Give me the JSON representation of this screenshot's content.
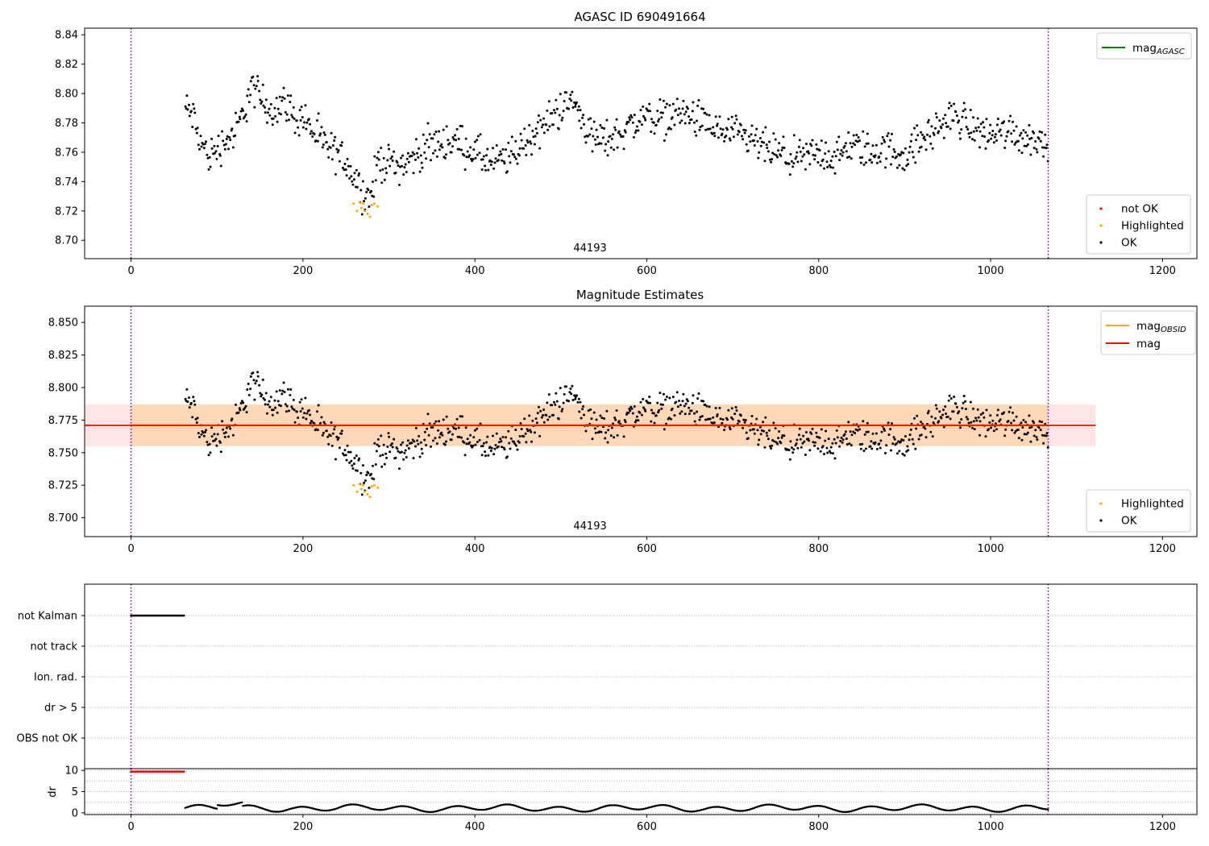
{
  "chart_data": [
    {
      "type": "scatter",
      "title": "AGASC ID 690491664",
      "xlim": [
        -54,
        1240
      ],
      "ylim": [
        8.6875,
        8.8445
      ],
      "xticks": [
        0,
        200,
        400,
        600,
        800,
        1000,
        1200
      ],
      "yticks": [
        8.7,
        8.72,
        8.74,
        8.76,
        8.78,
        8.8,
        8.82,
        8.84
      ],
      "ytick_labels": [
        "8.70",
        "8.72",
        "8.74",
        "8.76",
        "8.78",
        "8.80",
        "8.82",
        "8.84"
      ],
      "vlines": [
        0,
        1067
      ],
      "vline_color": "#800080",
      "annotation": "44193",
      "annotation_x": 534,
      "legend_lines": [
        {
          "label": "mag",
          "sub": "AGASC",
          "color": "#008000"
        }
      ],
      "legend_points": [
        {
          "label": "not OK",
          "color": "#ff0000"
        },
        {
          "label": "Highlighted",
          "color": "#ffa500"
        },
        {
          "label": "OK",
          "color": "#000000"
        }
      ],
      "series_note": "OK: anchors of the light curve (x, mag), dense points generated between them; Highlighted: orange points",
      "ok_anchors": [
        [
          63,
          8.79
        ],
        [
          72,
          8.785
        ],
        [
          80,
          8.768
        ],
        [
          90,
          8.757
        ],
        [
          100,
          8.762
        ],
        [
          110,
          8.768
        ],
        [
          120,
          8.772
        ],
        [
          130,
          8.785
        ],
        [
          140,
          8.805
        ],
        [
          150,
          8.797
        ],
        [
          160,
          8.79
        ],
        [
          170,
          8.79
        ],
        [
          180,
          8.795
        ],
        [
          190,
          8.782
        ],
        [
          200,
          8.785
        ],
        [
          210,
          8.775
        ],
        [
          220,
          8.768
        ],
        [
          230,
          8.762
        ],
        [
          240,
          8.758
        ],
        [
          250,
          8.755
        ],
        [
          258,
          8.745
        ],
        [
          268,
          8.735
        ],
        [
          278,
          8.728
        ],
        [
          288,
          8.755
        ],
        [
          300,
          8.752
        ],
        [
          320,
          8.752
        ],
        [
          340,
          8.762
        ],
        [
          360,
          8.767
        ],
        [
          380,
          8.767
        ],
        [
          400,
          8.76
        ],
        [
          420,
          8.752
        ],
        [
          440,
          8.756
        ],
        [
          460,
          8.768
        ],
        [
          480,
          8.778
        ],
        [
          500,
          8.79
        ],
        [
          515,
          8.795
        ],
        [
          525,
          8.782
        ],
        [
          540,
          8.768
        ],
        [
          560,
          8.77
        ],
        [
          580,
          8.778
        ],
        [
          600,
          8.785
        ],
        [
          620,
          8.783
        ],
        [
          640,
          8.787
        ],
        [
          660,
          8.782
        ],
        [
          680,
          8.775
        ],
        [
          700,
          8.772
        ],
        [
          720,
          8.768
        ],
        [
          740,
          8.762
        ],
        [
          760,
          8.757
        ],
        [
          780,
          8.755
        ],
        [
          800,
          8.76
        ],
        [
          820,
          8.756
        ],
        [
          840,
          8.765
        ],
        [
          860,
          8.76
        ],
        [
          880,
          8.762
        ],
        [
          900,
          8.758
        ],
        [
          920,
          8.768
        ],
        [
          940,
          8.778
        ],
        [
          960,
          8.785
        ],
        [
          980,
          8.776
        ],
        [
          1000,
          8.772
        ],
        [
          1020,
          8.775
        ],
        [
          1040,
          8.77
        ],
        [
          1067,
          8.767
        ]
      ],
      "highlighted": [
        [
          259,
          8.725
        ],
        [
          263,
          8.72
        ],
        [
          266,
          8.726
        ],
        [
          268,
          8.722
        ],
        [
          270,
          8.725
        ],
        [
          272,
          8.72
        ],
        [
          275,
          8.718
        ],
        [
          278,
          8.716
        ],
        [
          280,
          8.724
        ],
        [
          283,
          8.725
        ],
        [
          287,
          8.723
        ]
      ]
    },
    {
      "type": "scatter",
      "title": "Magnitude Estimates",
      "xlim": [
        -54,
        1240
      ],
      "ylim": [
        8.6855,
        8.8625
      ],
      "xticks": [
        0,
        200,
        400,
        600,
        800,
        1000,
        1200
      ],
      "yticks": [
        8.7,
        8.725,
        8.75,
        8.775,
        8.8,
        8.825,
        8.85
      ],
      "ytick_labels": [
        "8.700",
        "8.725",
        "8.750",
        "8.775",
        "8.800",
        "8.825",
        "8.850"
      ],
      "vlines": [
        0,
        1067
      ],
      "vline_color": "#800080",
      "annotation": "44193",
      "annotation_x": 534,
      "mag": 8.771,
      "mag_band": [
        8.755,
        8.787
      ],
      "mag_band_xmax": 1122,
      "mag_obsid": 8.771,
      "mag_obsid_band": [
        8.755,
        8.787
      ],
      "mag_obsid_band_xrange": [
        0,
        1067
      ],
      "legend_lines": [
        {
          "label": "mag",
          "sub": "OBSID",
          "color": "#ffa500"
        },
        {
          "label": "mag",
          "sub": "",
          "color": "#ff0000"
        }
      ],
      "legend_points": [
        {
          "label": "Highlighted",
          "color": "#ffa500"
        },
        {
          "label": "OK",
          "color": "#000000"
        }
      ]
    },
    {
      "type": "scatter",
      "title": "",
      "categories": [
        "not Kalman",
        "not track",
        "Ion. rad.",
        "dr > 5",
        "OBS not OK"
      ],
      "flag_segments": [
        {
          "category": "not Kalman",
          "x": [
            0,
            62
          ]
        }
      ],
      "xlim": [
        -54,
        1240
      ],
      "vlines": [
        0,
        1067
      ],
      "vline_color": "#800080"
    },
    {
      "type": "scatter",
      "title": "",
      "ylabel": "dr",
      "xlim": [
        -54,
        1240
      ],
      "ylim": [
        -0.4,
        10.4
      ],
      "xticks": [
        0,
        200,
        400,
        600,
        800,
        1000,
        1200
      ],
      "yticks": [
        0,
        5,
        10
      ],
      "ytick_labels": [
        "0",
        "5",
        "10"
      ],
      "vlines": [
        0,
        1067
      ],
      "vline_color": "#800080",
      "saturated_segment": {
        "x": [
          0,
          62
        ],
        "value": 9.7,
        "color": "#ff0000"
      },
      "dr_range": [
        63,
        1067
      ]
    }
  ]
}
